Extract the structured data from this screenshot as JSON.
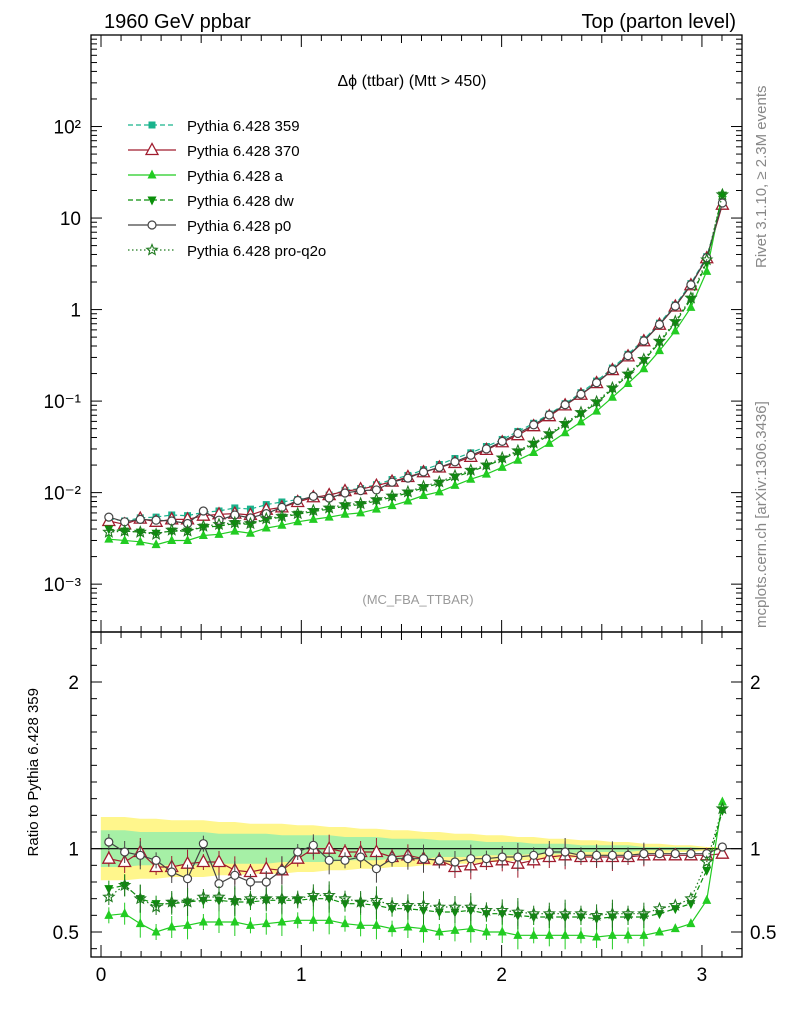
{
  "header": {
    "left": "1960 GeV ppbar",
    "right": "Top (parton level)"
  },
  "side_labels": {
    "rivet": "Rivet 3.1.10, ≥ 2.3M events",
    "mcplots": "mcplots.cern.ch [arXiv:1306.3436]"
  },
  "chart_data": [
    {
      "type": "line",
      "title": "Δϕ (ttbar) (Mtt > 450)",
      "watermark": "(MC_FBA_TTBAR)",
      "yscale": "log",
      "ylim": [
        0.0003,
        1000
      ],
      "xlim": [
        -0.05,
        3.2
      ],
      "ytick_labels": [
        "10⁻³",
        "10⁻²",
        "10⁻¹",
        "1",
        "10",
        "10²"
      ],
      "xtick_labels": [
        "0",
        "1",
        "2",
        "3"
      ],
      "x": [
        0.039,
        0.118,
        0.196,
        0.275,
        0.353,
        0.432,
        0.511,
        0.589,
        0.668,
        0.746,
        0.825,
        0.903,
        0.982,
        1.06,
        1.139,
        1.218,
        1.296,
        1.375,
        1.453,
        1.532,
        1.61,
        1.689,
        1.767,
        1.846,
        1.924,
        2.003,
        2.081,
        2.16,
        2.238,
        2.317,
        2.396,
        2.474,
        2.553,
        2.631,
        2.71,
        2.788,
        2.867,
        2.945,
        3.024,
        3.102
      ],
      "series": [
        {
          "name": "Pythia 6.428 359",
          "color": "#19b38c",
          "marker": "square",
          "dash": "dashed",
          "values": [
            0.0052,
            0.0049,
            0.0053,
            0.0054,
            0.0057,
            0.0056,
            0.0061,
            0.0063,
            0.0068,
            0.0066,
            0.0074,
            0.0079,
            0.0084,
            0.0089,
            0.0094,
            0.0106,
            0.0111,
            0.0122,
            0.0139,
            0.0154,
            0.0178,
            0.0203,
            0.0236,
            0.0272,
            0.0319,
            0.0381,
            0.0466,
            0.0572,
            0.0721,
            0.0935,
            0.1236,
            0.1652,
            0.2294,
            0.3245,
            0.4697,
            0.7105,
            1.1251,
            1.9213,
            3.7856,
            14.5
          ]
        },
        {
          "name": "Pythia 6.428 370",
          "color": "#a01c2e",
          "marker": "triangle-open",
          "dash": "solid",
          "values": [
            0.0049,
            0.0045,
            0.0052,
            0.0048,
            0.0051,
            0.0051,
            0.0056,
            0.0058,
            0.0059,
            0.0057,
            0.0065,
            0.0069,
            0.0079,
            0.0089,
            0.0094,
            0.0104,
            0.0109,
            0.0119,
            0.0132,
            0.0148,
            0.0167,
            0.0188,
            0.0211,
            0.0246,
            0.0293,
            0.0355,
            0.0424,
            0.0532,
            0.0684,
            0.0898,
            0.1174,
            0.1573,
            0.2179,
            0.3082,
            0.4509,
            0.6821,
            1.0801,
            1.8444,
            3.634,
            14.0
          ]
        },
        {
          "name": "Pythia 6.428 a",
          "color": "#22cc22",
          "marker": "triangle",
          "dash": "solid",
          "values": [
            0.0031,
            0.003,
            0.0029,
            0.0027,
            0.003,
            0.003,
            0.0034,
            0.0035,
            0.0038,
            0.0036,
            0.0041,
            0.0044,
            0.0048,
            0.0051,
            0.0054,
            0.0058,
            0.006,
            0.0066,
            0.0072,
            0.0081,
            0.0093,
            0.0102,
            0.012,
            0.014,
            0.0159,
            0.0189,
            0.0226,
            0.0274,
            0.0345,
            0.0451,
            0.0593,
            0.0776,
            0.1101,
            0.1558,
            0.2255,
            0.3557,
            0.5846,
            1.0566,
            2.612,
            18.5
          ]
        },
        {
          "name": "Pythia 6.428 dw",
          "color": "#0a8f0a",
          "marker": "triangle-down",
          "dash": "dashed",
          "values": [
            0.004,
            0.0038,
            0.0037,
            0.0036,
            0.0038,
            0.0038,
            0.0042,
            0.0043,
            0.0046,
            0.0045,
            0.0051,
            0.0054,
            0.0058,
            0.0062,
            0.0066,
            0.0071,
            0.0074,
            0.0081,
            0.0089,
            0.0099,
            0.0113,
            0.0126,
            0.0147,
            0.017,
            0.0195,
            0.0232,
            0.0278,
            0.0337,
            0.0425,
            0.0553,
            0.0727,
            0.0952,
            0.135,
            0.191,
            0.2765,
            0.4364,
            0.7163,
            1.2937,
            3.3,
            17.8
          ]
        },
        {
          "name": "Pythia 6.428 p0",
          "color": "#444444",
          "marker": "circle-open",
          "dash": "solid",
          "values": [
            0.0054,
            0.0048,
            0.0051,
            0.005,
            0.0049,
            0.0046,
            0.0063,
            0.005,
            0.0057,
            0.0053,
            0.0059,
            0.0069,
            0.0082,
            0.0091,
            0.0087,
            0.0099,
            0.0105,
            0.0107,
            0.013,
            0.0144,
            0.0168,
            0.0189,
            0.0217,
            0.0256,
            0.03,
            0.0363,
            0.0443,
            0.055,
            0.0705,
            0.0912,
            0.1188,
            0.1586,
            0.2203,
            0.3129,
            0.454,
            0.6867,
            1.0908,
            1.8671,
            3.6833,
            14.6
          ]
        },
        {
          "name": "Pythia 6.428 pro-q2o",
          "color": "#1f7a1f",
          "marker": "star-open",
          "dash": "dotted",
          "values": [
            0.0037,
            0.0038,
            0.0037,
            0.0035,
            0.0039,
            0.0038,
            0.0043,
            0.0045,
            0.0047,
            0.0046,
            0.0052,
            0.0055,
            0.0059,
            0.0064,
            0.0068,
            0.0074,
            0.0076,
            0.0084,
            0.0092,
            0.0102,
            0.0117,
            0.0131,
            0.0153,
            0.0176,
            0.0201,
            0.024,
            0.0287,
            0.0349,
            0.0441,
            0.0572,
            0.0752,
            0.0986,
            0.1398,
            0.198,
            0.2864,
            0.4521,
            0.7425,
            1.3409,
            3.5,
            18.0
          ]
        }
      ]
    },
    {
      "type": "line",
      "ylabel": "Ratio to Pythia 6.428 359",
      "ylim": [
        0.35,
        2.3
      ],
      "xlim": [
        -0.05,
        3.2
      ],
      "ytick_labels": [
        "0.5",
        "1",
        "2"
      ],
      "xtick_labels": [
        "0",
        "1",
        "2",
        "3"
      ],
      "band_outer": {
        "color": "#fff68c",
        "upper": [
          1.19,
          1.19,
          1.18,
          1.18,
          1.17,
          1.17,
          1.17,
          1.16,
          1.16,
          1.15,
          1.15,
          1.15,
          1.14,
          1.14,
          1.13,
          1.13,
          1.12,
          1.12,
          1.11,
          1.11,
          1.1,
          1.1,
          1.09,
          1.09,
          1.08,
          1.08,
          1.07,
          1.07,
          1.06,
          1.06,
          1.05,
          1.05,
          1.04,
          1.04,
          1.03,
          1.03,
          1.02,
          1.02,
          1.01,
          1.01
        ]
      },
      "band_inner": {
        "color": "#a6f0a6",
        "upper": [
          1.11,
          1.11,
          1.1,
          1.1,
          1.1,
          1.1,
          1.1,
          1.09,
          1.09,
          1.09,
          1.09,
          1.08,
          1.08,
          1.08,
          1.08,
          1.07,
          1.07,
          1.07,
          1.06,
          1.06,
          1.06,
          1.05,
          1.05,
          1.05,
          1.04,
          1.04,
          1.04,
          1.03,
          1.03,
          1.03,
          1.02,
          1.02,
          1.02,
          1.02,
          1.01,
          1.01,
          1.01,
          1.01,
          1.0,
          1.0
        ]
      },
      "series": [
        {
          "name": "Pythia 6.428 370",
          "values": [
            0.94,
            0.92,
            0.98,
            0.89,
            0.89,
            0.91,
            0.92,
            0.92,
            0.87,
            0.86,
            0.88,
            0.87,
            0.94,
            1.0,
            1.0,
            0.98,
            0.98,
            0.98,
            0.95,
            0.96,
            0.94,
            0.93,
            0.89,
            0.9,
            0.92,
            0.93,
            0.91,
            0.93,
            0.95,
            0.96,
            0.95,
            0.95,
            0.95,
            0.95,
            0.96,
            0.96,
            0.96,
            0.96,
            0.96,
            0.97
          ]
        },
        {
          "name": "Pythia 6.428 a",
          "values": [
            0.6,
            0.61,
            0.55,
            0.5,
            0.53,
            0.54,
            0.56,
            0.56,
            0.56,
            0.54,
            0.55,
            0.56,
            0.57,
            0.57,
            0.57,
            0.55,
            0.54,
            0.54,
            0.52,
            0.53,
            0.52,
            0.5,
            0.51,
            0.52,
            0.5,
            0.5,
            0.48,
            0.48,
            0.48,
            0.48,
            0.48,
            0.47,
            0.48,
            0.48,
            0.48,
            0.5,
            0.52,
            0.55,
            0.69,
            1.28
          ]
        },
        {
          "name": "Pythia 6.428 dw",
          "values": [
            0.76,
            0.78,
            0.7,
            0.67,
            0.67,
            0.68,
            0.69,
            0.69,
            0.68,
            0.68,
            0.69,
            0.69,
            0.69,
            0.7,
            0.7,
            0.67,
            0.67,
            0.66,
            0.64,
            0.64,
            0.63,
            0.62,
            0.62,
            0.63,
            0.61,
            0.61,
            0.6,
            0.59,
            0.59,
            0.59,
            0.59,
            0.58,
            0.59,
            0.59,
            0.59,
            0.61,
            0.64,
            0.67,
            0.87,
            1.23
          ]
        },
        {
          "name": "Pythia 6.428 p0",
          "values": [
            1.04,
            0.98,
            0.96,
            0.93,
            0.86,
            0.82,
            1.03,
            0.79,
            0.84,
            0.8,
            0.8,
            0.87,
            0.98,
            1.02,
            0.93,
            0.93,
            0.95,
            0.88,
            0.94,
            0.94,
            0.94,
            0.93,
            0.92,
            0.94,
            0.94,
            0.95,
            0.95,
            0.96,
            0.98,
            0.98,
            0.96,
            0.96,
            0.96,
            0.96,
            0.97,
            0.97,
            0.97,
            0.97,
            0.97,
            1.01
          ]
        },
        {
          "name": "Pythia 6.428 pro-q2o",
          "values": [
            0.71,
            0.78,
            0.7,
            0.65,
            0.68,
            0.68,
            0.71,
            0.71,
            0.69,
            0.7,
            0.7,
            0.7,
            0.7,
            0.72,
            0.72,
            0.7,
            0.68,
            0.69,
            0.66,
            0.66,
            0.66,
            0.65,
            0.65,
            0.65,
            0.63,
            0.63,
            0.62,
            0.61,
            0.61,
            0.61,
            0.61,
            0.6,
            0.61,
            0.61,
            0.61,
            0.64,
            0.66,
            0.7,
            0.92,
            1.24
          ]
        }
      ]
    }
  ]
}
